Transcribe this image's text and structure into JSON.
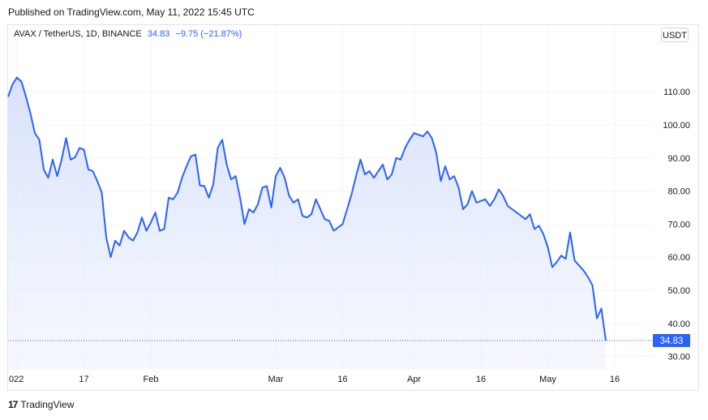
{
  "header": {
    "published": "Published on TradingView.com, May 11, 2022 15:45 UTC"
  },
  "legend": {
    "symbol": "AVAX / TetherUS, 1D, BINANCE",
    "last": "34.83",
    "change": "−9.75 (−21.87%)"
  },
  "currency_button": "USDT",
  "footer": {
    "logo": "17",
    "brand": "TradingView"
  },
  "colors": {
    "line": "#2962ff",
    "fill": "#e3eafd",
    "grid": "#f0f3fa",
    "axis_text": "#131722"
  },
  "chart_data": {
    "type": "area",
    "title": "AVAX / TetherUS, 1D, BINANCE",
    "xlabel": "",
    "ylabel": "",
    "ylim": [
      26,
      124
    ],
    "grid": true,
    "y_ticks": [
      "110.00",
      "100.00",
      "90.00",
      "80.00",
      "70.00",
      "60.00",
      "50.00",
      "40.00",
      "30.00"
    ],
    "x_ticks": [
      {
        "day": 2,
        "label": "022"
      },
      {
        "day": 17,
        "label": "17"
      },
      {
        "day": 32,
        "label": "Feb"
      },
      {
        "day": 60,
        "label": "Mar"
      },
      {
        "day": 75,
        "label": "16"
      },
      {
        "day": 91,
        "label": "Apr"
      },
      {
        "day": 106,
        "label": "16"
      },
      {
        "day": 121,
        "label": "May"
      },
      {
        "day": 136,
        "label": "16"
      }
    ],
    "last_price_label": "34.83",
    "series": [
      {
        "values": [
          108.5,
          112.3,
          114.3,
          113.0,
          108.5,
          103.5,
          97.5,
          95.5,
          86.5,
          84.0,
          89.5,
          84.5,
          89.5,
          96.0,
          89.5,
          90.2,
          93.0,
          92.5,
          86.5,
          86.0,
          83.0,
          79.5,
          66.0,
          60.0,
          65.0,
          63.5,
          68.0,
          66.0,
          65.0,
          67.5,
          72.0,
          68.0,
          70.5,
          73.5,
          68.0,
          68.5,
          78.0,
          77.5,
          79.5,
          84.0,
          87.5,
          90.5,
          91.0,
          81.7,
          81.5,
          78.0,
          82.0,
          93.0,
          95.5,
          88.0,
          83.5,
          84.5,
          78.0,
          70.0,
          74.5,
          73.5,
          76.0,
          81.0,
          81.5,
          75.0,
          84.5,
          87.0,
          84.0,
          78.5,
          76.5,
          77.5,
          72.5,
          72.0,
          73.0,
          77.5,
          74.5,
          71.5,
          71.0,
          68.0,
          69.0,
          70.0,
          74.5,
          79.0,
          84.5,
          89.5,
          85.0,
          86.0,
          84.0,
          86.0,
          88.0,
          83.5,
          85.0,
          90.0,
          89.5,
          93.0,
          95.5,
          97.5,
          97.0,
          96.5,
          98.0,
          96.0,
          91.5,
          83.0,
          87.5,
          83.5,
          84.5,
          81.0,
          74.5,
          76.0,
          80.0,
          76.5,
          77.0,
          77.5,
          75.5,
          77.5,
          80.5,
          78.5,
          75.5,
          74.5,
          73.5,
          72.5,
          71.5,
          73.0,
          68.5,
          69.5,
          67.0,
          63.0,
          57.0,
          58.5,
          60.5,
          59.5,
          67.5,
          59.0,
          57.5,
          56.0,
          54.0,
          51.5,
          41.5,
          44.5,
          34.83
        ]
      }
    ]
  }
}
